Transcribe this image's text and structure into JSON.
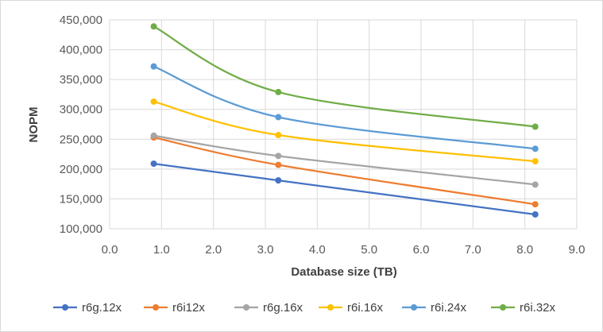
{
  "chart_data": {
    "type": "line",
    "title": "",
    "xlabel": "Database size (TB)",
    "ylabel": "NOPM",
    "xlim": [
      0,
      9
    ],
    "ylim": [
      100000,
      450000
    ],
    "x_ticks": [
      "0.0",
      "1.0",
      "2.0",
      "3.0",
      "4.0",
      "5.0",
      "6.0",
      "7.0",
      "8.0",
      "9.0"
    ],
    "y_ticks": [
      "100,000",
      "150,000",
      "200,000",
      "250,000",
      "300,000",
      "350,000",
      "400,000",
      "450,000"
    ],
    "x_tick_values": [
      0,
      1,
      2,
      3,
      4,
      5,
      6,
      7,
      8,
      9
    ],
    "y_tick_values": [
      100000,
      150000,
      200000,
      250000,
      300000,
      350000,
      400000,
      450000
    ],
    "grid": "both",
    "smooth": true,
    "legend": "bottom",
    "x": [
      0.85,
      3.25,
      8.2
    ],
    "series": [
      {
        "name": "r6g.12x",
        "color": "#4472C4",
        "values": [
          209000,
          181000,
          124000
        ]
      },
      {
        "name": "r6i12x",
        "color": "#ED7D31",
        "values": [
          253000,
          207000,
          141000
        ]
      },
      {
        "name": "r6g.16x",
        "color": "#A5A5A5",
        "values": [
          256000,
          222000,
          174000
        ]
      },
      {
        "name": "r6i.16x",
        "color": "#FFC000",
        "values": [
          313000,
          257000,
          213000
        ]
      },
      {
        "name": "r6i.24x",
        "color": "#5B9BD5",
        "values": [
          372000,
          287000,
          234000
        ]
      },
      {
        "name": "r6i.32x",
        "color": "#70AD47",
        "values": [
          439000,
          329000,
          271000
        ]
      }
    ]
  }
}
